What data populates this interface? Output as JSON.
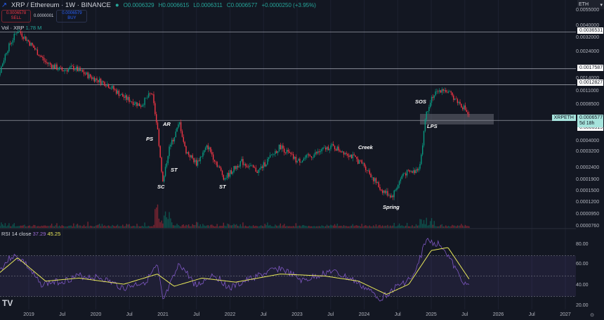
{
  "header": {
    "title": "XRP / Ethereum · 1W · BINANCE",
    "open": "O0.0006329",
    "high": "H0.0006615",
    "low": "L0.0006311",
    "close": "C0.0006577",
    "change": "+0.0000250 (+3.95%)"
  },
  "trade": {
    "sell_price": "0.0006578",
    "sell_label": "SELL",
    "spread": "0.0000001",
    "buy_price": "0.0006579",
    "buy_label": "BUY"
  },
  "volume": {
    "label": "Vol · XRP",
    "value": "1.78 M"
  },
  "rsi": {
    "label": "RSI 14 close",
    "value": "37.29",
    "ma_value": "45.25",
    "axis": [
      "80.00",
      "60.00",
      "40.00",
      "20.00"
    ],
    "colors": {
      "rsi": "#7e57c2",
      "ma": "#e8e85a"
    }
  },
  "currency": "ETH",
  "price_axis": [
    "0.0055000",
    "0.0040000",
    "0.0032000",
    "0.0024000",
    "0.0014000",
    "0.0011000",
    "0.0008500",
    "0.0004000",
    "0.0003200",
    "0.0002400",
    "0.0001900",
    "0.0001500",
    "0.0001200",
    "0.0000950",
    "0.0000760"
  ],
  "price_tags": {
    "levels": [
      "0.0036531",
      "0.0017587",
      "0.0012827",
      "0.0006315"
    ],
    "symbol": "XRPETH",
    "last": "0.0006577",
    "countdown": "5d 18h"
  },
  "x_axis": [
    "2019",
    "Jul",
    "2020",
    "Jul",
    "2021",
    "Jul",
    "2022",
    "Jul",
    "2023",
    "Jul",
    "2024",
    "Jul",
    "2025",
    "Jul",
    "2026",
    "Jul",
    "2027"
  ],
  "annotations": [
    "PS",
    "AR",
    "ST",
    "SC",
    "ST",
    "Creek",
    "Spring",
    "SOS",
    "LPS"
  ],
  "colors": {
    "up": "#089981",
    "down": "#f23645",
    "background": "#131722"
  },
  "chart_data": {
    "type": "candlestick",
    "scale": "log",
    "ylim": [
      7.6e-05,
      0.0055
    ],
    "price_path": [
      [
        "2018-06",
        0.0009
      ],
      [
        "2018-09",
        0.0025
      ],
      [
        "2018-11",
        0.0038
      ],
      [
        "2019-01",
        0.003
      ],
      [
        "2019-04",
        0.002
      ],
      [
        "2019-07",
        0.0017
      ],
      [
        "2019-09",
        0.0018
      ],
      [
        "2019-12",
        0.0015
      ],
      [
        "2020-03",
        0.0013
      ],
      [
        "2020-06",
        0.001
      ],
      [
        "2020-09",
        0.00085
      ],
      [
        "2020-11",
        0.0011
      ],
      [
        "2020-12",
        0.00055
      ],
      [
        "2021-01",
        0.00018
      ],
      [
        "2021-02",
        0.00035
      ],
      [
        "2021-04",
        0.0006
      ],
      [
        "2021-05",
        0.00035
      ],
      [
        "2021-07",
        0.00027
      ],
      [
        "2021-09",
        0.00038
      ],
      [
        "2021-12",
        0.0002
      ],
      [
        "2022-03",
        0.00028
      ],
      [
        "2022-06",
        0.00023
      ],
      [
        "2022-10",
        0.00038
      ],
      [
        "2023-01",
        0.00028
      ],
      [
        "2023-04",
        0.00032
      ],
      [
        "2023-07",
        0.00038
      ],
      [
        "2023-10",
        0.00033
      ],
      [
        "2024-01",
        0.00026
      ],
      [
        "2024-04",
        0.00016
      ],
      [
        "2024-06",
        0.00014
      ],
      [
        "2024-08",
        0.00022
      ],
      [
        "2024-10",
        0.00023
      ],
      [
        "2024-11",
        0.00026
      ],
      [
        "2024-12",
        0.0007
      ],
      [
        "2025-01",
        0.001
      ],
      [
        "2025-03",
        0.0012
      ],
      [
        "2025-05",
        0.001
      ],
      [
        "2025-07",
        0.0008
      ],
      [
        "2025-08",
        0.00066
      ]
    ],
    "rsi_path": [
      [
        "2018-06",
        45
      ],
      [
        "2018-10",
        70
      ],
      [
        "2018-12",
        65
      ],
      [
        "2019-03",
        42
      ],
      [
        "2019-07",
        45
      ],
      [
        "2019-10",
        50
      ],
      [
        "2020-02",
        48
      ],
      [
        "2020-06",
        38
      ],
      [
        "2020-10",
        45
      ],
      [
        "2020-12",
        60
      ],
      [
        "2021-01",
        25
      ],
      [
        "2021-04",
        62
      ],
      [
        "2021-07",
        40
      ],
      [
        "2021-10",
        52
      ],
      [
        "2022-01",
        38
      ],
      [
        "2022-05",
        48
      ],
      [
        "2022-10",
        58
      ],
      [
        "2023-02",
        45
      ],
      [
        "2023-07",
        55
      ],
      [
        "2023-11",
        46
      ],
      [
        "2024-04",
        28
      ],
      [
        "2024-07",
        40
      ],
      [
        "2024-10",
        50
      ],
      [
        "2024-12",
        85
      ],
      [
        "2025-03",
        80
      ],
      [
        "2025-06",
        50
      ],
      [
        "2025-08",
        37.29
      ]
    ],
    "rsi_ma_path": [
      [
        "2018-06",
        45
      ],
      [
        "2018-11",
        68
      ],
      [
        "2019-04",
        45
      ],
      [
        "2019-10",
        48
      ],
      [
        "2020-06",
        42
      ],
      [
        "2020-12",
        52
      ],
      [
        "2021-03",
        40
      ],
      [
        "2021-08",
        48
      ],
      [
        "2022-02",
        44
      ],
      [
        "2022-10",
        52
      ],
      [
        "2023-06",
        50
      ],
      [
        "2023-12",
        45
      ],
      [
        "2024-05",
        32
      ],
      [
        "2024-09",
        42
      ],
      [
        "2025-01",
        75
      ],
      [
        "2025-04",
        78
      ],
      [
        "2025-08",
        45.25
      ]
    ]
  }
}
